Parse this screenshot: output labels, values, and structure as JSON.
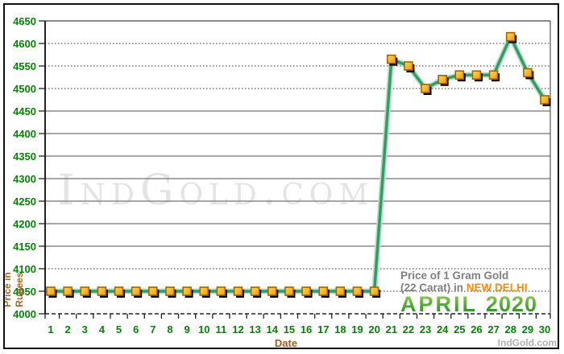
{
  "chart_data": {
    "type": "line",
    "title_line1": "Price of 1 Gram Gold",
    "title_line2_prefix": "(22 Carat) in ",
    "title_line2_highlight": "NEW DELHI",
    "period_month": "APRIL",
    "period_year": "2020",
    "xlabel": "Date",
    "ylabel_line1": "Price in",
    "ylabel_line2": "Rupees",
    "ylim": [
      4000,
      4650
    ],
    "y_ticks": [
      4000,
      4050,
      4100,
      4150,
      4200,
      4250,
      4300,
      4350,
      4400,
      4450,
      4500,
      4550,
      4600,
      4650
    ],
    "categories": [
      1,
      2,
      3,
      4,
      5,
      6,
      7,
      8,
      9,
      10,
      11,
      12,
      13,
      14,
      15,
      16,
      17,
      18,
      19,
      20,
      21,
      22,
      23,
      24,
      25,
      26,
      27,
      28,
      29,
      30
    ],
    "values": [
      4050,
      4050,
      4050,
      4050,
      4050,
      4050,
      4050,
      4050,
      4050,
      4050,
      4050,
      4050,
      4050,
      4050,
      4050,
      4050,
      4050,
      4050,
      4050,
      4050,
      4565,
      4550,
      4500,
      4520,
      4530,
      4530,
      4530,
      4615,
      4535,
      4475
    ],
    "grid": true,
    "legend_position": "none"
  },
  "watermark": "IndGold.com",
  "footer_brand": "IndGold.com",
  "colors": {
    "line_green": "#2f9e63",
    "line_halo": "#b5ddc6",
    "marker_fill_light": "#ffd84d",
    "marker_fill_dark": "#f59b00",
    "marker_border": "#a56300",
    "marker_shadow": "#000000",
    "axis_label_green": "#068206",
    "axis_title_brown": "#9e5c1c",
    "grid_gray": "#8a8a8a",
    "grid_dotted": "#333333",
    "title_gray": "#7f7f7f",
    "highlight_orange": "#ff8a00",
    "period_green": "#2f8f2a",
    "watermark_gray": "#e4e4e4"
  }
}
